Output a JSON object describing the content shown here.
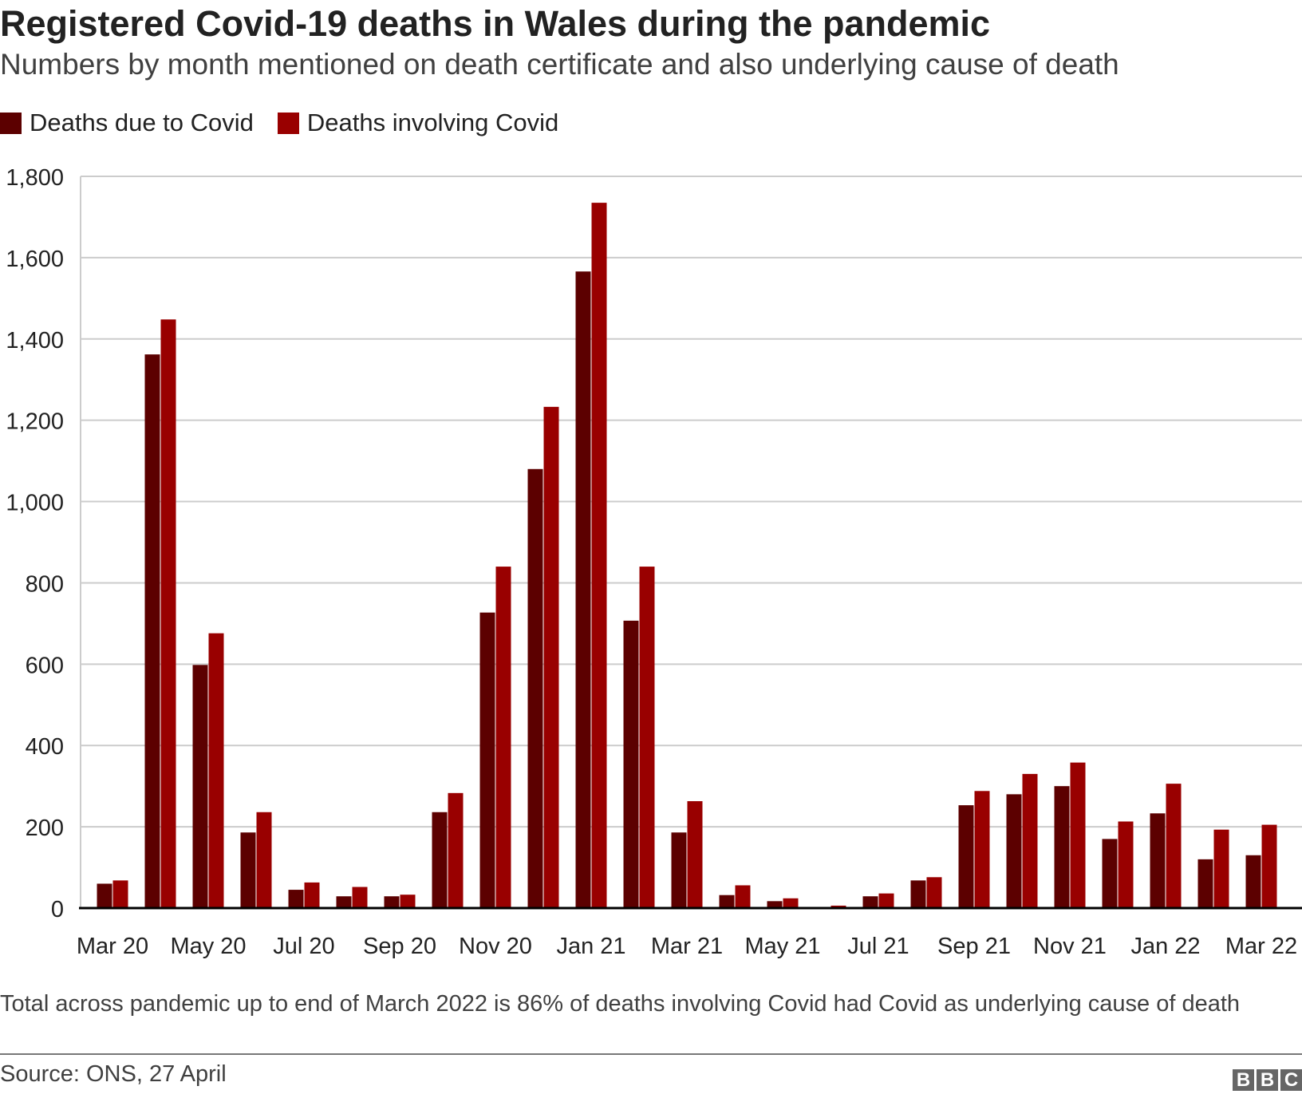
{
  "colors": {
    "due": "#5c0000",
    "involving": "#990000"
  },
  "footer": {
    "note": "Total across pandemic up to end of March 2022 is 86% of deaths involving Covid had Covid as underlying cause of death",
    "source": "Source: ONS, 27 April",
    "logo": [
      "B",
      "B",
      "C"
    ]
  },
  "chart_data": {
    "type": "bar",
    "title": "Registered Covid-19 deaths in Wales during the pandemic",
    "subtitle": "Numbers by month mentioned on death certificate and also underlying cause of death",
    "xlabel": "",
    "ylabel": "",
    "ylim": [
      0,
      1800
    ],
    "yticks": [
      0,
      200,
      400,
      600,
      800,
      1000,
      1200,
      1400,
      1600,
      1800
    ],
    "ytick_labels": [
      "0",
      "200",
      "400",
      "600",
      "800",
      "1,000",
      "1,200",
      "1,400",
      "1,600",
      "1,800"
    ],
    "grid": true,
    "legend_position": "top-left",
    "categories": [
      "Mar 20",
      "Apr 20",
      "May 20",
      "Jun 20",
      "Jul 20",
      "Aug 20",
      "Sep 20",
      "Oct 20",
      "Nov 20",
      "Dec 20",
      "Jan 21",
      "Feb 21",
      "Mar 21",
      "Apr 21",
      "May 21",
      "Jun 21",
      "Jul 21",
      "Aug 21",
      "Sep 21",
      "Oct 21",
      "Nov 21",
      "Dec 21",
      "Jan 22",
      "Feb 22",
      "Mar 22"
    ],
    "xtick_labels": [
      "Mar 20",
      "May 20",
      "Jul 20",
      "Sep 20",
      "Nov 20",
      "Jan 21",
      "Mar 21",
      "May 21",
      "Jul 21",
      "Sep 21",
      "Nov 21",
      "Jan 22",
      "Mar 22"
    ],
    "series": [
      {
        "name": "Deaths due to Covid",
        "values": [
          60,
          1362,
          598,
          186,
          45,
          29,
          29,
          236,
          727,
          1080,
          1566,
          707,
          186,
          32,
          17,
          2,
          29,
          68,
          253,
          280,
          300,
          170,
          233,
          120,
          130
        ]
      },
      {
        "name": "Deaths involving Covid",
        "values": [
          68,
          1448,
          676,
          236,
          63,
          52,
          33,
          283,
          840,
          1233,
          1735,
          840,
          263,
          56,
          24,
          6,
          36,
          76,
          288,
          330,
          358,
          213,
          306,
          193,
          205
        ]
      }
    ]
  }
}
